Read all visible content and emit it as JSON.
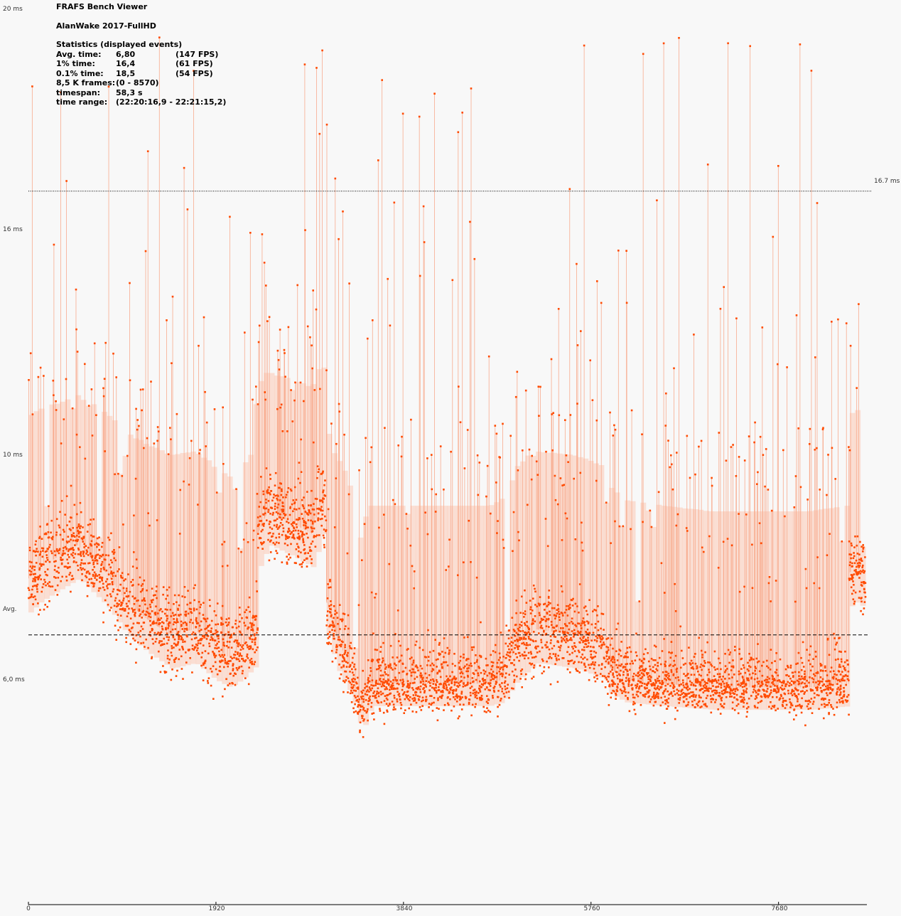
{
  "stats": {
    "app_title": "FRAFS Bench Viewer",
    "run_name": "AlanWake 2017-FullHD",
    "heading": "Statistics (displayed events)",
    "rows": [
      {
        "label": "Avg. time:",
        "value": "6,80",
        "extra": "(147 FPS)"
      },
      {
        "label": "1% time:",
        "value": "16,4",
        "extra": "(61 FPS)"
      },
      {
        "label": "0.1% time:",
        "value": "18,5",
        "extra": "(54 FPS)"
      },
      {
        "label": "8,5 K frames:",
        "value": "(0 - 8570)",
        "extra": ""
      },
      {
        "label": "timespan:",
        "value": "58,3 s",
        "extra": ""
      },
      {
        "label": "time range:",
        "value": "(22:20:16,9 - 22:21:15,2)",
        "extra": ""
      }
    ]
  },
  "chart_data": {
    "type": "scatter",
    "title": "AlanWake 2017-FullHD",
    "xlabel": "",
    "ylabel": "",
    "xlim": [
      0,
      8570
    ],
    "ylim": [
      0,
      20
    ],
    "y_ticks": [
      {
        "value": 20,
        "label": "20 ms"
      },
      {
        "value": 16,
        "label": "16 ms"
      },
      {
        "value": 10,
        "label": "10 ms"
      },
      {
        "value": 6,
        "label": "6,0 ms"
      }
    ],
    "x_ticks": [
      {
        "value": 0,
        "label": "0"
      },
      {
        "value": 1920,
        "label": "1920"
      },
      {
        "value": 3840,
        "label": "3840"
      },
      {
        "value": 5760,
        "label": "5760"
      },
      {
        "value": 7680,
        "label": "7680"
      }
    ],
    "reference_lines": [
      {
        "value": 16.7,
        "label": "16.7 ms",
        "style": "dotted"
      },
      {
        "value": 6.8,
        "label": "Avg.",
        "style": "dashed"
      }
    ],
    "baseline_segments": [
      {
        "x": [
          0,
          120,
          500,
          800,
          1000,
          1200,
          1450,
          1700,
          1900,
          2050,
          2350
        ],
        "y": [
          7.8,
          8.0,
          8.4,
          7.9,
          7.4,
          7.1,
          6.8,
          6.9,
          6.6,
          6.4,
          6.9
        ]
      },
      {
        "x": [
          2350,
          2450,
          2700,
          2900,
          3000,
          3050
        ],
        "y": [
          8.6,
          9.0,
          8.8,
          8.6,
          9.2,
          8.8
        ]
      },
      {
        "x": [
          3050,
          3150,
          3300,
          3400,
          3500,
          3700,
          4200,
          4700,
          4850,
          5000,
          5200,
          5600,
          5900
        ],
        "y": [
          7.4,
          6.8,
          6.2,
          5.2,
          5.9,
          5.9,
          5.9,
          5.9,
          6.0,
          6.6,
          6.9,
          6.8,
          6.6
        ]
      },
      {
        "x": [
          5900,
          6100,
          6500,
          7000,
          7500,
          8000,
          8400
        ],
        "y": [
          6.3,
          6.0,
          5.9,
          5.8,
          5.8,
          5.8,
          5.9
        ]
      },
      {
        "x": [
          8400,
          8480,
          8570
        ],
        "y": [
          7.9,
          8.0,
          7.8
        ]
      }
    ],
    "noise_amplitude": 0.75,
    "spike_fraction": 0.09,
    "spike_max": 19.5,
    "series": [
      {
        "color": "#ff4a00",
        "line_color": "#f8ab8e",
        "fill_color": "#fbc9b4"
      }
    ]
  }
}
